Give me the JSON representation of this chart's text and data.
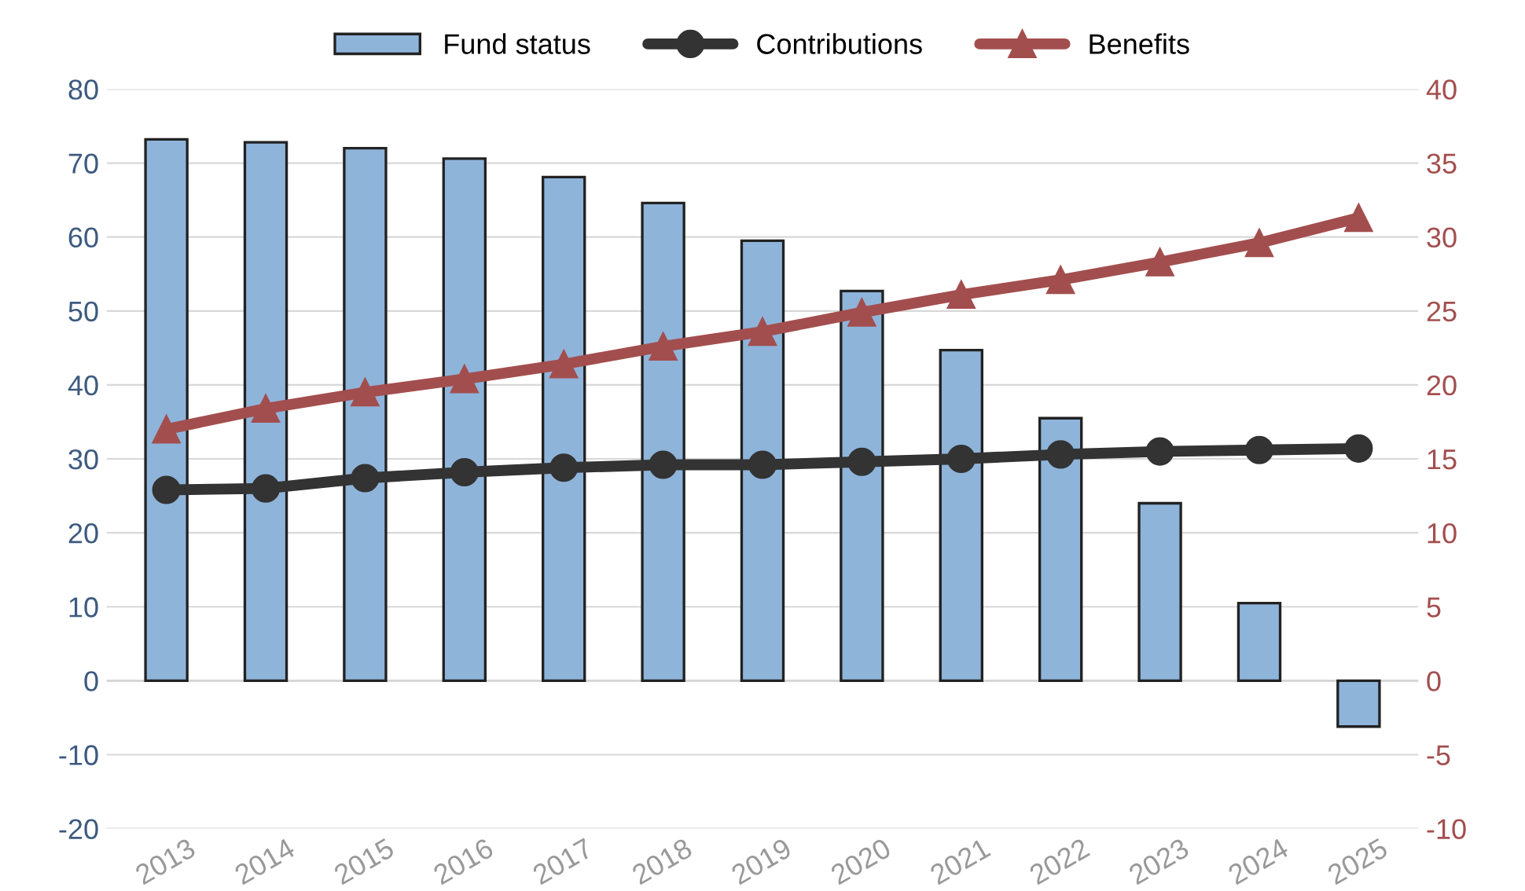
{
  "chart_data": {
    "type": "bar",
    "categories": [
      "2013",
      "2014",
      "2015",
      "2016",
      "2017",
      "2018",
      "2019",
      "2020",
      "2021",
      "2022",
      "2023",
      "2024",
      "2025"
    ],
    "series": [
      {
        "name": "Fund status",
        "color": "#8fb4da",
        "values": [
          73.2,
          72.8,
          72,
          70.6,
          68.1,
          64.6,
          59.5,
          52.7,
          44.7,
          35.5,
          24,
          10.5,
          -6.2
        ]
      },
      {
        "name": "Contributions",
        "type": "line",
        "axis": "y2",
        "color": "#333333",
        "marker": "circle",
        "values": [
          12.9,
          13,
          13.7,
          14.1,
          14.4,
          14.6,
          14.6,
          14.8,
          15,
          15.3,
          15.5,
          15.6,
          15.7
        ]
      },
      {
        "name": "Benefits",
        "type": "line",
        "axis": "y2",
        "color": "#a34e4e",
        "marker": "triangle",
        "values": [
          17,
          18.4,
          19.5,
          20.4,
          21.4,
          22.6,
          23.6,
          24.9,
          26.1,
          27.1,
          28.3,
          29.6,
          31.3
        ]
      }
    ],
    "ylim": [
      -20,
      80
    ],
    "yticks": [
      -20,
      -10,
      0,
      10,
      20,
      30,
      40,
      50,
      60,
      70,
      80
    ],
    "y2lim": [
      -10,
      40
    ],
    "y2ticks": [
      -10,
      -5,
      0,
      5,
      10,
      15,
      20,
      25,
      30,
      35,
      40
    ],
    "grid": "y",
    "legend": "top"
  }
}
